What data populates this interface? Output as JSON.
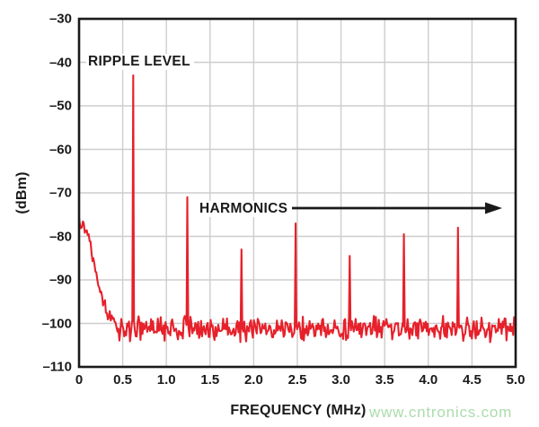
{
  "watermark": {
    "text": "www.cntronics.com",
    "color": "#abdcab"
  },
  "chart_data": {
    "type": "line",
    "title": "",
    "xlabel": "FREQUENCY (MHz)",
    "ylabel": "(dBm)",
    "xlim": [
      0,
      5
    ],
    "ylim": [
      -110,
      -30
    ],
    "grid": true,
    "legend": "none",
    "x_ticks": [
      0,
      0.5,
      1.0,
      1.5,
      2.0,
      2.5,
      3.0,
      3.5,
      4.0,
      4.5,
      5.0
    ],
    "x_tick_labels": [
      "0",
      "0.5",
      "1.0",
      "1.5",
      "2.0",
      "2.5",
      "3.0",
      "3.5",
      "4.0",
      "4.5",
      "5.0"
    ],
    "y_ticks": [
      -30,
      -40,
      -50,
      -60,
      -70,
      -80,
      -90,
      -100,
      -110
    ],
    "y_tick_labels": [
      "–30",
      "–40",
      "–50",
      "–60",
      "–70",
      "–80",
      "–90",
      "–100",
      "–110"
    ],
    "trace_color": "#e6212b",
    "grid_color": "#cdcdcd",
    "axis_color": "#1a1a1a",
    "noise_floor_dbm": -101.3,
    "noise_peak_to_peak_db": 6.5,
    "low_freq_rolloff": [
      [
        0.0,
        -75.5
      ],
      [
        0.06,
        -78
      ],
      [
        0.12,
        -80
      ],
      [
        0.17,
        -86
      ],
      [
        0.22,
        -90
      ],
      [
        0.28,
        -95
      ],
      [
        0.33,
        -98
      ],
      [
        0.4,
        -100
      ],
      [
        0.45,
        -101.3
      ]
    ],
    "peaks": [
      {
        "freq_mhz": 0.62,
        "level_dbm": -43,
        "label": "ripple fundamental"
      },
      {
        "freq_mhz": 1.24,
        "level_dbm": -71,
        "label": "harmonic"
      },
      {
        "freq_mhz": 1.86,
        "level_dbm": -83,
        "label": "harmonic"
      },
      {
        "freq_mhz": 2.48,
        "level_dbm": -77,
        "label": "harmonic"
      },
      {
        "freq_mhz": 3.1,
        "level_dbm": -84.5,
        "label": "harmonic"
      },
      {
        "freq_mhz": 3.72,
        "level_dbm": -79.5,
        "label": "harmonic"
      },
      {
        "freq_mhz": 4.34,
        "level_dbm": -78,
        "label": "harmonic"
      }
    ],
    "annotations": [
      {
        "text": "RIPPLE LEVEL",
        "refers_to": "spike at 0.62 MHz"
      },
      {
        "text": "HARMONICS",
        "arrow": "points right across harmonic spikes"
      }
    ]
  }
}
